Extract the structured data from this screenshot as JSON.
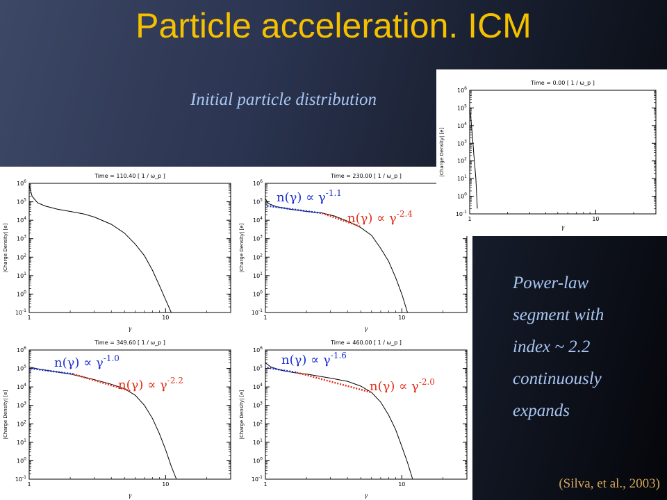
{
  "slide": {
    "title": "Particle acceleration. ICM",
    "caption_initial": "Initial particle distribution",
    "caption_powerlaw_lines": [
      "Power-law",
      "segment with",
      "index ~ 2.2",
      "continuously",
      "expands"
    ],
    "citation": "(Silva, et al., 2003)"
  },
  "colors": {
    "title": "#f5c000",
    "caption": "#a9c6f2",
    "citation": "#d7a85a",
    "low_fit": "#1a2fd0",
    "high_fit": "#e0301a"
  },
  "chart_data": [
    {
      "id": "initial",
      "type": "line",
      "time_value": "0.00",
      "title": "Time =    0.00 [ 1 / ω_p ]",
      "ylabel": "|Charge Density| [e]",
      "xlabel": "γ",
      "xlim": [
        1,
        30
      ],
      "ylim": [
        0.1,
        1000000
      ],
      "xscale": "log",
      "yscale": "log",
      "y_ticks": [
        "10^-1",
        "10^0",
        "10^1",
        "10^2",
        "10^3",
        "10^4",
        "10^5",
        "10^6"
      ],
      "x_ticks": [
        "1",
        "10"
      ],
      "series": [
        {
          "x": [
            1.0,
            1.02,
            1.05,
            1.08,
            1.12,
            1.15
          ],
          "y": [
            100000,
            30000,
            3000,
            200,
            10,
            0.2
          ]
        }
      ],
      "fits": []
    },
    {
      "id": "t110",
      "type": "line",
      "time_value": "110.40",
      "title": "Time =  110.40 [ 1 / ω_p ]",
      "ylabel": "|Charge Density| [e]",
      "xlabel": "γ",
      "xlim": [
        1,
        30
      ],
      "ylim": [
        0.1,
        1000000
      ],
      "xscale": "log",
      "yscale": "log",
      "y_ticks": [
        "10^-1",
        "10^0",
        "10^1",
        "10^2",
        "10^3",
        "10^4",
        "10^5",
        "10^6"
      ],
      "x_ticks": [
        "1",
        "10"
      ],
      "series": [
        {
          "x": [
            1.0,
            1.05,
            1.15,
            1.3,
            1.6,
            2.0,
            2.5,
            3.0,
            4.0,
            5.0,
            6.0,
            7.0,
            8.0,
            9.0,
            10.0,
            11.0
          ],
          "y": [
            800000,
            200000,
            90000,
            60000,
            40000,
            30000,
            22000,
            15000,
            6000,
            2000,
            500,
            120,
            20,
            3,
            0.5,
            0.1
          ]
        }
      ],
      "fits": []
    },
    {
      "id": "t230",
      "type": "line",
      "time_value": "230.00",
      "title": "Time =  230.00 [ 1 / ω_p ]",
      "ylabel": "|Charge Density| [e]",
      "xlabel": "γ",
      "xlim": [
        1,
        30
      ],
      "ylim": [
        0.1,
        1000000
      ],
      "xscale": "log",
      "yscale": "log",
      "y_ticks": [
        "10^-1",
        "10^0",
        "10^1",
        "10^2",
        "10^3",
        "10^4",
        "10^5",
        "10^6"
      ],
      "x_ticks": [
        "1",
        "10"
      ],
      "series": [
        {
          "x": [
            1.0,
            1.05,
            1.2,
            1.5,
            2.0,
            2.6,
            3.2,
            4.0,
            5.0,
            6.0,
            7.0,
            8.0,
            9.0,
            10.0,
            11.0
          ],
          "y": [
            150000,
            80000,
            55000,
            40000,
            30000,
            25000,
            17000,
            9000,
            4000,
            1500,
            300,
            60,
            8,
            1,
            0.1
          ]
        }
      ],
      "fits": [
        {
          "label": "n(γ) ∝ γ^-1.1",
          "exponent": "-1.1",
          "x": [
            1.03,
            2.6
          ],
          "y": [
            60000,
            24000
          ],
          "color": "#1a2fd0"
        },
        {
          "label": "n(γ) ∝ γ^-2.4",
          "exponent": "-2.4",
          "x": [
            2.6,
            5.0
          ],
          "y": [
            24000,
            4500
          ],
          "color": "#e0301a"
        }
      ]
    },
    {
      "id": "t349",
      "type": "line",
      "time_value": "349.60",
      "title": "Time =  349.60 [ 1 / ω_p ]",
      "ylabel": "|Charge Density| [e]",
      "xlabel": "γ",
      "xlim": [
        1,
        30
      ],
      "ylim": [
        0.1,
        1000000
      ],
      "xscale": "log",
      "yscale": "log",
      "y_ticks": [
        "10^-1",
        "10^0",
        "10^1",
        "10^2",
        "10^3",
        "10^4",
        "10^5",
        "10^6"
      ],
      "x_ticks": [
        "1",
        "10"
      ],
      "series": [
        {
          "x": [
            1.0,
            1.2,
            1.5,
            2.0,
            3.0,
            4.0,
            5.0,
            6.0,
            7.0,
            8.0,
            9.0,
            10.0,
            11.0,
            12.0
          ],
          "y": [
            120000,
            90000,
            70000,
            50000,
            25000,
            14000,
            8000,
            3500,
            1000,
            200,
            30,
            4,
            0.5,
            0.1
          ]
        }
      ],
      "fits": [
        {
          "label": "n(γ) ∝ γ^-1.0",
          "exponent": "-1.0",
          "x": [
            1.03,
            2.1
          ],
          "y": [
            100000,
            50000
          ],
          "color": "#1a2fd0"
        },
        {
          "label": "n(γ) ∝ γ^-2.2",
          "exponent": "-2.2",
          "x": [
            2.1,
            5.5
          ],
          "y": [
            50000,
            6000
          ],
          "color": "#e0301a"
        }
      ]
    },
    {
      "id": "t460",
      "type": "line",
      "time_value": "460.00",
      "title": "Time =  460.00 [ 1 / ω_p ]",
      "ylabel": "|Charge Density| [e]",
      "xlabel": "γ",
      "xlim": [
        1,
        30
      ],
      "ylim": [
        0.1,
        1000000
      ],
      "xscale": "log",
      "yscale": "log",
      "y_ticks": [
        "10^-1",
        "10^0",
        "10^1",
        "10^2",
        "10^3",
        "10^4",
        "10^5",
        "10^6"
      ],
      "x_ticks": [
        "1",
        "10"
      ],
      "series": [
        {
          "x": [
            1.0,
            1.1,
            1.3,
            1.6,
            2.0,
            3.0,
            4.0,
            5.0,
            6.0,
            7.0,
            8.0,
            9.0,
            10.0,
            11.0,
            12.0
          ],
          "y": [
            200000,
            120000,
            80000,
            60000,
            50000,
            30000,
            20000,
            11000,
            5000,
            1500,
            300,
            50,
            6,
            0.8,
            0.1
          ]
        }
      ],
      "fits": [
        {
          "label": "n(γ) ∝ γ^-1.6",
          "exponent": "-1.6",
          "x": [
            1.03,
            1.7
          ],
          "y": [
            110000,
            60000
          ],
          "color": "#1a2fd0"
        },
        {
          "label": "n(γ) ∝ γ^-2.0",
          "exponent": "-2.0",
          "x": [
            1.7,
            6.0
          ],
          "y": [
            60000,
            5000
          ],
          "color": "#e0301a"
        }
      ]
    }
  ]
}
